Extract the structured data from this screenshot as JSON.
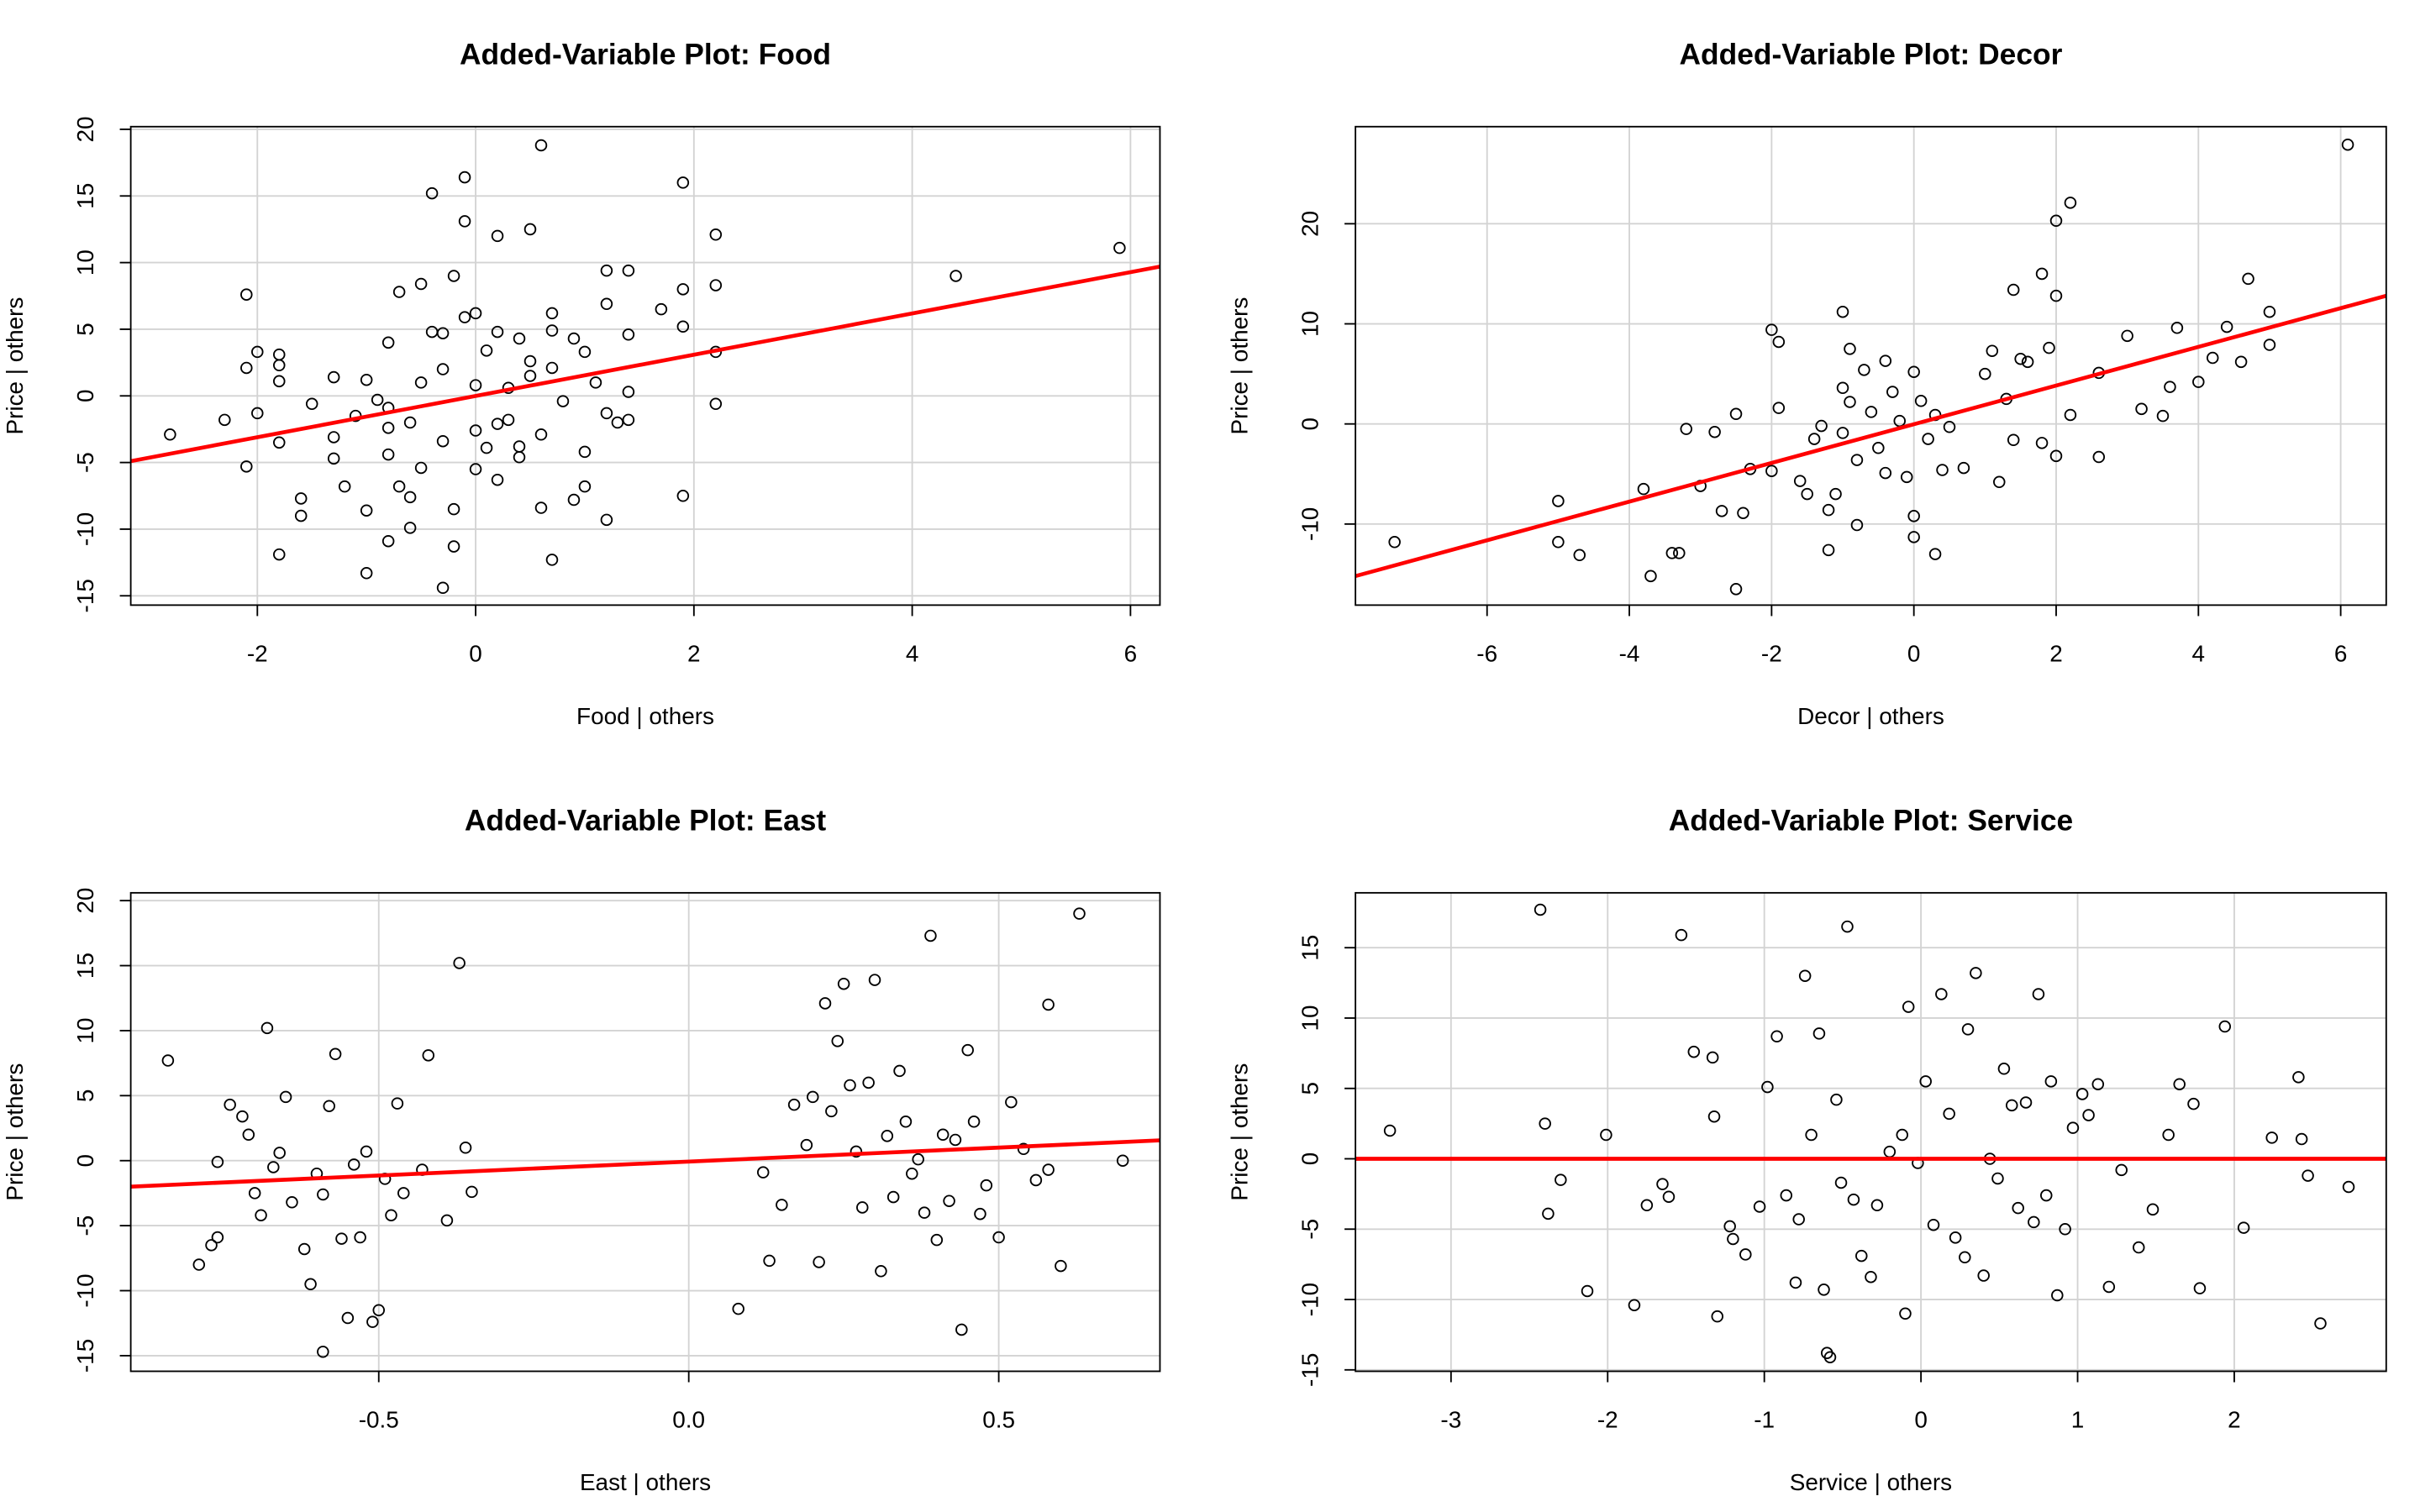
{
  "chart_data": [
    {
      "type": "scatter",
      "title": "Added-Variable Plot: Food",
      "xlabel": "Food | others",
      "ylabel": "Price  | others",
      "x": [
        -2.8,
        -2.3,
        -2.1,
        -2.1,
        -2.1,
        -2.0,
        -2.0,
        -1.8,
        -1.8,
        -1.8,
        -1.8,
        -1.8,
        -1.6,
        -1.6,
        -1.5,
        -1.3,
        -1.3,
        -1.3,
        -1.2,
        -1.1,
        -1.0,
        -1.0,
        -1.0,
        -0.9,
        -0.8,
        -0.8,
        -0.8,
        -0.8,
        -0.8,
        -0.7,
        -0.7,
        -0.6,
        -0.6,
        -0.6,
        -0.5,
        -0.5,
        -0.5,
        -0.4,
        -0.4,
        -0.3,
        -0.3,
        -0.3,
        -0.3,
        -0.2,
        -0.2,
        -0.2,
        -0.1,
        -0.1,
        -0.1,
        0,
        0,
        0,
        0,
        0.1,
        0.1,
        0.2,
        0.2,
        0.2,
        0.2,
        0.3,
        0.3,
        0.4,
        0.4,
        0.4,
        0.5,
        0.5,
        0.5,
        0.6,
        0.6,
        0.6,
        0.7,
        0.7,
        0.7,
        0.7,
        0.8,
        0.9,
        0.9,
        1.0,
        1.0,
        1.0,
        1.1,
        1.2,
        1.2,
        1.2,
        1.2,
        1.3,
        1.4,
        1.4,
        1.4,
        1.4,
        1.7,
        1.9,
        1.9,
        1.9,
        1.9,
        2.2,
        2.2,
        2.2,
        2.2,
        4.4,
        5.9
      ],
      "y": [
        -2.9,
        -1.8,
        7.6,
        2.1,
        -5.3,
        3.3,
        -1.3,
        2.3,
        3.1,
        1.1,
        -3.5,
        -11.9,
        -9.0,
        -7.7,
        -0.6,
        -3.1,
        -4.7,
        1.4,
        -6.8,
        -1.5,
        -8.6,
        -13.3,
        1.2,
        -0.3,
        4.0,
        -2.4,
        -4.4,
        -10.9,
        -0.9,
        7.8,
        -6.8,
        -2.0,
        -7.6,
        -9.9,
        8.4,
        -5.4,
        1.0,
        15.2,
        4.8,
        -14.4,
        -3.4,
        2.0,
        4.7,
        9.0,
        -11.3,
        -8.5,
        13.1,
        16.4,
        5.9,
        6.2,
        -5.5,
        -2.6,
        0.8,
        3.4,
        -3.9,
        12.0,
        -6.3,
        -2.1,
        4.8,
        0.6,
        -1.8,
        4.3,
        -4.6,
        -3.8,
        12.5,
        1.5,
        2.6,
        -2.9,
        18.8,
        -8.4,
        6.2,
        4.9,
        -12.3,
        2.1,
        -0.4,
        -7.8,
        4.3,
        -6.8,
        -4.2,
        3.3,
        1.0,
        9.4,
        6.9,
        -1.3,
        -9.3,
        -2.0,
        9.4,
        4.6,
        0.3,
        -1.8,
        6.5,
        16.0,
        8.0,
        5.2,
        -7.5,
        12.1,
        3.3,
        -0.6,
        8.3,
        9.0,
        11.1
      ],
      "point_color": "#000000",
      "fit_line": {
        "x": [
          -3.16,
          6.27
        ],
        "y": [
          -4.9,
          9.7
        ],
        "color": "#ff0000"
      },
      "xlim": [
        -3.16,
        6.27
      ],
      "ylim": [
        -15.7,
        20.2
      ],
      "xticks": [
        -2,
        0,
        2,
        4,
        6
      ],
      "yticks": [
        -15,
        -10,
        -5,
        0,
        5,
        10,
        15,
        20
      ],
      "grid": true
    },
    {
      "type": "scatter",
      "title": "Added-Variable Plot: Decor",
      "xlabel": "Decor | others",
      "ylabel": "Price  | others",
      "x": [
        -7.3,
        -5.0,
        -5.0,
        -4.7,
        -3.8,
        -3.7,
        -3.4,
        -3.3,
        -3.2,
        -3.0,
        -2.8,
        -2.7,
        -2.5,
        -2.5,
        -2.4,
        -2.3,
        -2.0,
        -2.0,
        -1.9,
        -1.9,
        -1.6,
        -1.5,
        -1.4,
        -1.3,
        -1.2,
        -1.2,
        -1.1,
        -1.0,
        -1.0,
        -1.0,
        -0.9,
        -0.9,
        -0.8,
        -0.8,
        -0.7,
        -0.6,
        -0.5,
        -0.4,
        -0.4,
        -0.3,
        -0.2,
        -0.1,
        0,
        0,
        0,
        0.1,
        0.2,
        0.3,
        0.3,
        0.4,
        0.5,
        0.7,
        1.0,
        1.1,
        1.2,
        1.3,
        1.4,
        1.4,
        1.5,
        1.6,
        1.8,
        1.8,
        1.9,
        2.0,
        2.0,
        2.0,
        2.2,
        2.2,
        2.6,
        2.6,
        3.0,
        3.2,
        3.5,
        3.6,
        3.7,
        4.0,
        4.2,
        4.4,
        4.6,
        4.7,
        5.0,
        5.0,
        6.1
      ],
      "y": [
        -11.8,
        -7.7,
        -11.8,
        -13.1,
        -6.5,
        -15.2,
        -12.9,
        -12.9,
        -0.5,
        -6.2,
        -0.8,
        -8.7,
        -16.5,
        1.0,
        -8.9,
        -4.5,
        9.4,
        -4.7,
        8.2,
        1.6,
        -5.7,
        -7.0,
        -1.5,
        -0.2,
        -8.6,
        -12.6,
        -7.0,
        11.2,
        3.6,
        -0.9,
        7.5,
        2.2,
        -10.1,
        -3.6,
        5.4,
        1.2,
        -2.4,
        -4.9,
        6.3,
        3.2,
        0.3,
        -5.3,
        -11.3,
        5.2,
        -9.2,
        2.3,
        -1.5,
        -13.0,
        0.9,
        -4.6,
        -0.3,
        -4.4,
        5.0,
        7.3,
        -5.8,
        2.5,
        13.4,
        -1.6,
        6.5,
        6.2,
        15.0,
        -1.9,
        7.6,
        20.3,
        12.8,
        -3.2,
        22.1,
        0.9,
        5.1,
        -3.3,
        8.8,
        1.5,
        0.8,
        3.7,
        9.6,
        4.2,
        6.6,
        9.7,
        6.2,
        14.5,
        11.2,
        7.9,
        27.9
      ],
      "point_color": "#000000",
      "fit_line": {
        "x": [
          -7.85,
          6.64
        ],
        "y": [
          -15.2,
          12.8
        ],
        "color": "#ff0000"
      },
      "xlim": [
        -7.85,
        6.64
      ],
      "ylim": [
        -18.1,
        29.7
      ],
      "xticks": [
        -6,
        -4,
        -2,
        0,
        2,
        4,
        6
      ],
      "yticks": [
        -10,
        0,
        10,
        20
      ],
      "grid": true
    },
    {
      "type": "scatter",
      "title": "Added-Variable Plot: East",
      "xlabel": "East | others",
      "ylabel": "Price  | others",
      "x": [
        -0.84,
        -0.79,
        -0.77,
        -0.76,
        -0.76,
        -0.74,
        -0.72,
        -0.71,
        -0.7,
        -0.69,
        -0.68,
        -0.67,
        -0.66,
        -0.65,
        -0.64,
        -0.62,
        -0.61,
        -0.6,
        -0.59,
        -0.59,
        -0.58,
        -0.57,
        -0.56,
        -0.55,
        -0.54,
        -0.53,
        -0.52,
        -0.51,
        -0.5,
        -0.49,
        -0.48,
        -0.47,
        -0.46,
        -0.43,
        -0.42,
        -0.39,
        -0.37,
        -0.36,
        -0.35,
        0.08,
        0.12,
        0.13,
        0.15,
        0.17,
        0.19,
        0.2,
        0.21,
        0.22,
        0.23,
        0.24,
        0.25,
        0.26,
        0.27,
        0.28,
        0.29,
        0.3,
        0.31,
        0.32,
        0.33,
        0.34,
        0.35,
        0.36,
        0.37,
        0.38,
        0.39,
        0.4,
        0.41,
        0.42,
        0.43,
        0.44,
        0.45,
        0.46,
        0.47,
        0.48,
        0.5,
        0.52,
        0.54,
        0.56,
        0.58,
        0.58,
        0.6,
        0.63,
        0.7
      ],
      "y": [
        7.7,
        -8.0,
        -6.5,
        -5.9,
        -0.1,
        4.3,
        3.4,
        2.0,
        -2.5,
        -4.2,
        10.2,
        -0.5,
        0.6,
        4.9,
        -3.2,
        -6.8,
        -9.5,
        -1.0,
        -2.6,
        -14.7,
        4.2,
        8.2,
        -6.0,
        -12.1,
        -0.3,
        -5.9,
        0.7,
        -12.4,
        -11.5,
        -1.4,
        -4.2,
        4.4,
        -2.5,
        -0.7,
        8.1,
        -4.6,
        15.2,
        1.0,
        -2.4,
        -11.4,
        -0.9,
        -7.7,
        -3.4,
        4.3,
        1.2,
        4.9,
        -7.8,
        12.1,
        3.8,
        9.2,
        13.6,
        5.8,
        0.7,
        -3.6,
        6.0,
        13.9,
        -8.5,
        1.9,
        -2.8,
        6.9,
        3.0,
        -1.0,
        0.1,
        -4.0,
        17.3,
        -6.1,
        2.0,
        -3.1,
        1.6,
        -13.0,
        8.5,
        3.0,
        -4.1,
        -1.9,
        -5.9,
        4.5,
        0.9,
        -1.5,
        12.0,
        -0.7,
        -8.1,
        19.0,
        0.0
      ],
      "point_color": "#000000",
      "fit_line": {
        "x": [
          -0.9,
          0.76
        ],
        "y": [
          -2.0,
          1.56
        ],
        "color": "#ff0000"
      },
      "xlim": [
        -0.9,
        0.76
      ],
      "ylim": [
        -16.2,
        20.6
      ],
      "xticks": [
        -0.5,
        {
          "value": 0,
          "label": "0.0"
        },
        0.5
      ],
      "yticks": [
        -15,
        -10,
        -5,
        0,
        5,
        10,
        15,
        20
      ],
      "grid": true
    },
    {
      "type": "scatter",
      "title": "Added-Variable Plot: Service",
      "xlabel": "Service | others",
      "ylabel": "Price  | others",
      "x": [
        -3.39,
        -2.43,
        -2.4,
        -2.38,
        -2.3,
        -2.13,
        -2.01,
        -1.83,
        -1.75,
        -1.65,
        -1.61,
        -1.53,
        -1.45,
        -1.33,
        -1.32,
        -1.3,
        -1.22,
        -1.2,
        -1.12,
        -1.03,
        -0.98,
        -0.92,
        -0.86,
        -0.8,
        -0.78,
        -0.74,
        -0.7,
        -0.65,
        -0.62,
        -0.6,
        -0.58,
        -0.54,
        -0.51,
        -0.47,
        -0.43,
        -0.38,
        -0.32,
        -0.28,
        -0.2,
        -0.12,
        -0.1,
        -0.08,
        -0.02,
        0.03,
        0.08,
        0.13,
        0.18,
        0.22,
        0.28,
        0.3,
        0.35,
        0.4,
        0.44,
        0.49,
        0.53,
        0.58,
        0.62,
        0.67,
        0.72,
        0.75,
        0.8,
        0.83,
        0.87,
        0.92,
        0.97,
        1.03,
        1.07,
        1.13,
        1.2,
        1.28,
        1.39,
        1.48,
        1.58,
        1.65,
        1.74,
        1.78,
        1.94,
        2.06,
        2.24,
        2.41,
        2.43,
        2.47,
        2.55,
        2.73
      ],
      "y": [
        2.0,
        17.7,
        2.5,
        -3.9,
        -1.5,
        -9.4,
        1.7,
        -10.4,
        -3.3,
        -1.8,
        -2.7,
        15.9,
        7.6,
        7.2,
        3.0,
        -11.2,
        -4.8,
        -5.7,
        -6.8,
        -3.4,
        5.1,
        8.7,
        -2.6,
        -8.8,
        -4.3,
        13.0,
        1.7,
        8.9,
        -9.3,
        -13.8,
        -14.1,
        4.2,
        -1.7,
        16.5,
        -2.9,
        -6.9,
        -8.4,
        -3.3,
        0.5,
        1.7,
        -11.0,
        10.8,
        -0.3,
        5.5,
        -4.7,
        11.7,
        3.2,
        -5.6,
        -7.0,
        9.2,
        13.2,
        -8.3,
        0.0,
        -1.4,
        6.4,
        3.8,
        -3.5,
        4.0,
        -4.5,
        11.7,
        -2.6,
        5.5,
        -9.7,
        -5.0,
        2.2,
        4.6,
        3.1,
        5.3,
        -9.1,
        -0.8,
        -6.3,
        -3.6,
        1.7,
        5.3,
        3.9,
        -9.2,
        9.4,
        -4.9,
        1.5,
        5.8,
        1.4,
        -1.2,
        -11.7,
        -2.0
      ],
      "point_color": "#000000",
      "fit_line": {
        "x": [
          -3.61,
          2.97
        ],
        "y": [
          0,
          0
        ],
        "color": "#ff0000"
      },
      "xlim": [
        -3.61,
        2.97
      ],
      "ylim": [
        -15.1,
        18.9
      ],
      "xticks": [
        -3,
        -2,
        -1,
        0,
        1,
        2
      ],
      "yticks": [
        -15,
        -10,
        -5,
        0,
        5,
        10,
        15
      ],
      "grid": true
    }
  ]
}
